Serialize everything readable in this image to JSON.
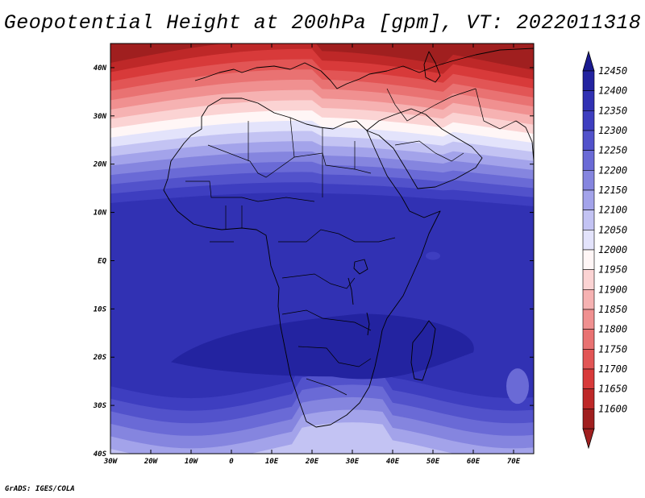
{
  "title": "Geopotential Height at 200hPa [gpm], VT: 2022011318",
  "footer": "GrADS: IGES/COLA",
  "chart_data": {
    "type": "heatmap",
    "title": "Geopotential Height at 200hPa [gpm], VT: 2022011318",
    "variable": "Geopotential Height",
    "level": "200hPa",
    "units": "gpm",
    "valid_time": "2022011318",
    "lon_range": [
      -30,
      75
    ],
    "lat_range": [
      -40,
      45
    ],
    "lon_ticks": [
      "30W",
      "20W",
      "10W",
      "0",
      "10E",
      "20E",
      "30E",
      "40E",
      "50E",
      "60E",
      "70E"
    ],
    "lon_tick_values": [
      -30,
      -20,
      -10,
      0,
      10,
      20,
      30,
      40,
      50,
      60,
      70
    ],
    "lat_ticks": [
      "40S",
      "30S",
      "20S",
      "10S",
      "EQ",
      "10N",
      "20N",
      "30N",
      "40N"
    ],
    "lat_tick_values": [
      -40,
      -30,
      -20,
      -10,
      0,
      10,
      20,
      30,
      40
    ],
    "colorbar_levels": [
      11600,
      11650,
      11700,
      11750,
      11800,
      11850,
      11900,
      11950,
      12000,
      12050,
      12100,
      12150,
      12200,
      12250,
      12300,
      12350,
      12400,
      12450
    ],
    "colorbar_colors": [
      "#a01f1f",
      "#be2828",
      "#d83a3a",
      "#e25555",
      "#e97272",
      "#f09090",
      "#f6b2b2",
      "#fbd3d3",
      "#fff6f6",
      "#e3e3fb",
      "#c3c3f3",
      "#a3a3ea",
      "#8585df",
      "#6a6ad6",
      "#5252cb",
      "#3e3ec0",
      "#3131b3",
      "#2323a0"
    ],
    "colorbar_cap_colors": [
      "#a01f1f",
      "#1a1a90"
    ],
    "features": [
      {
        "description": "lowest heights (trough/ridge boundary) over eastern Mediterranean, Turkey and Caspian region",
        "lon": 45,
        "lat": 40,
        "value": 11625
      },
      {
        "description": "white 12000 gpm band across North Africa",
        "lat_approx": 28
      },
      {
        "description": "broad high over southern Africa and Indian Ocean",
        "lon": 25,
        "lat": -17,
        "value": 12440
      }
    ]
  }
}
